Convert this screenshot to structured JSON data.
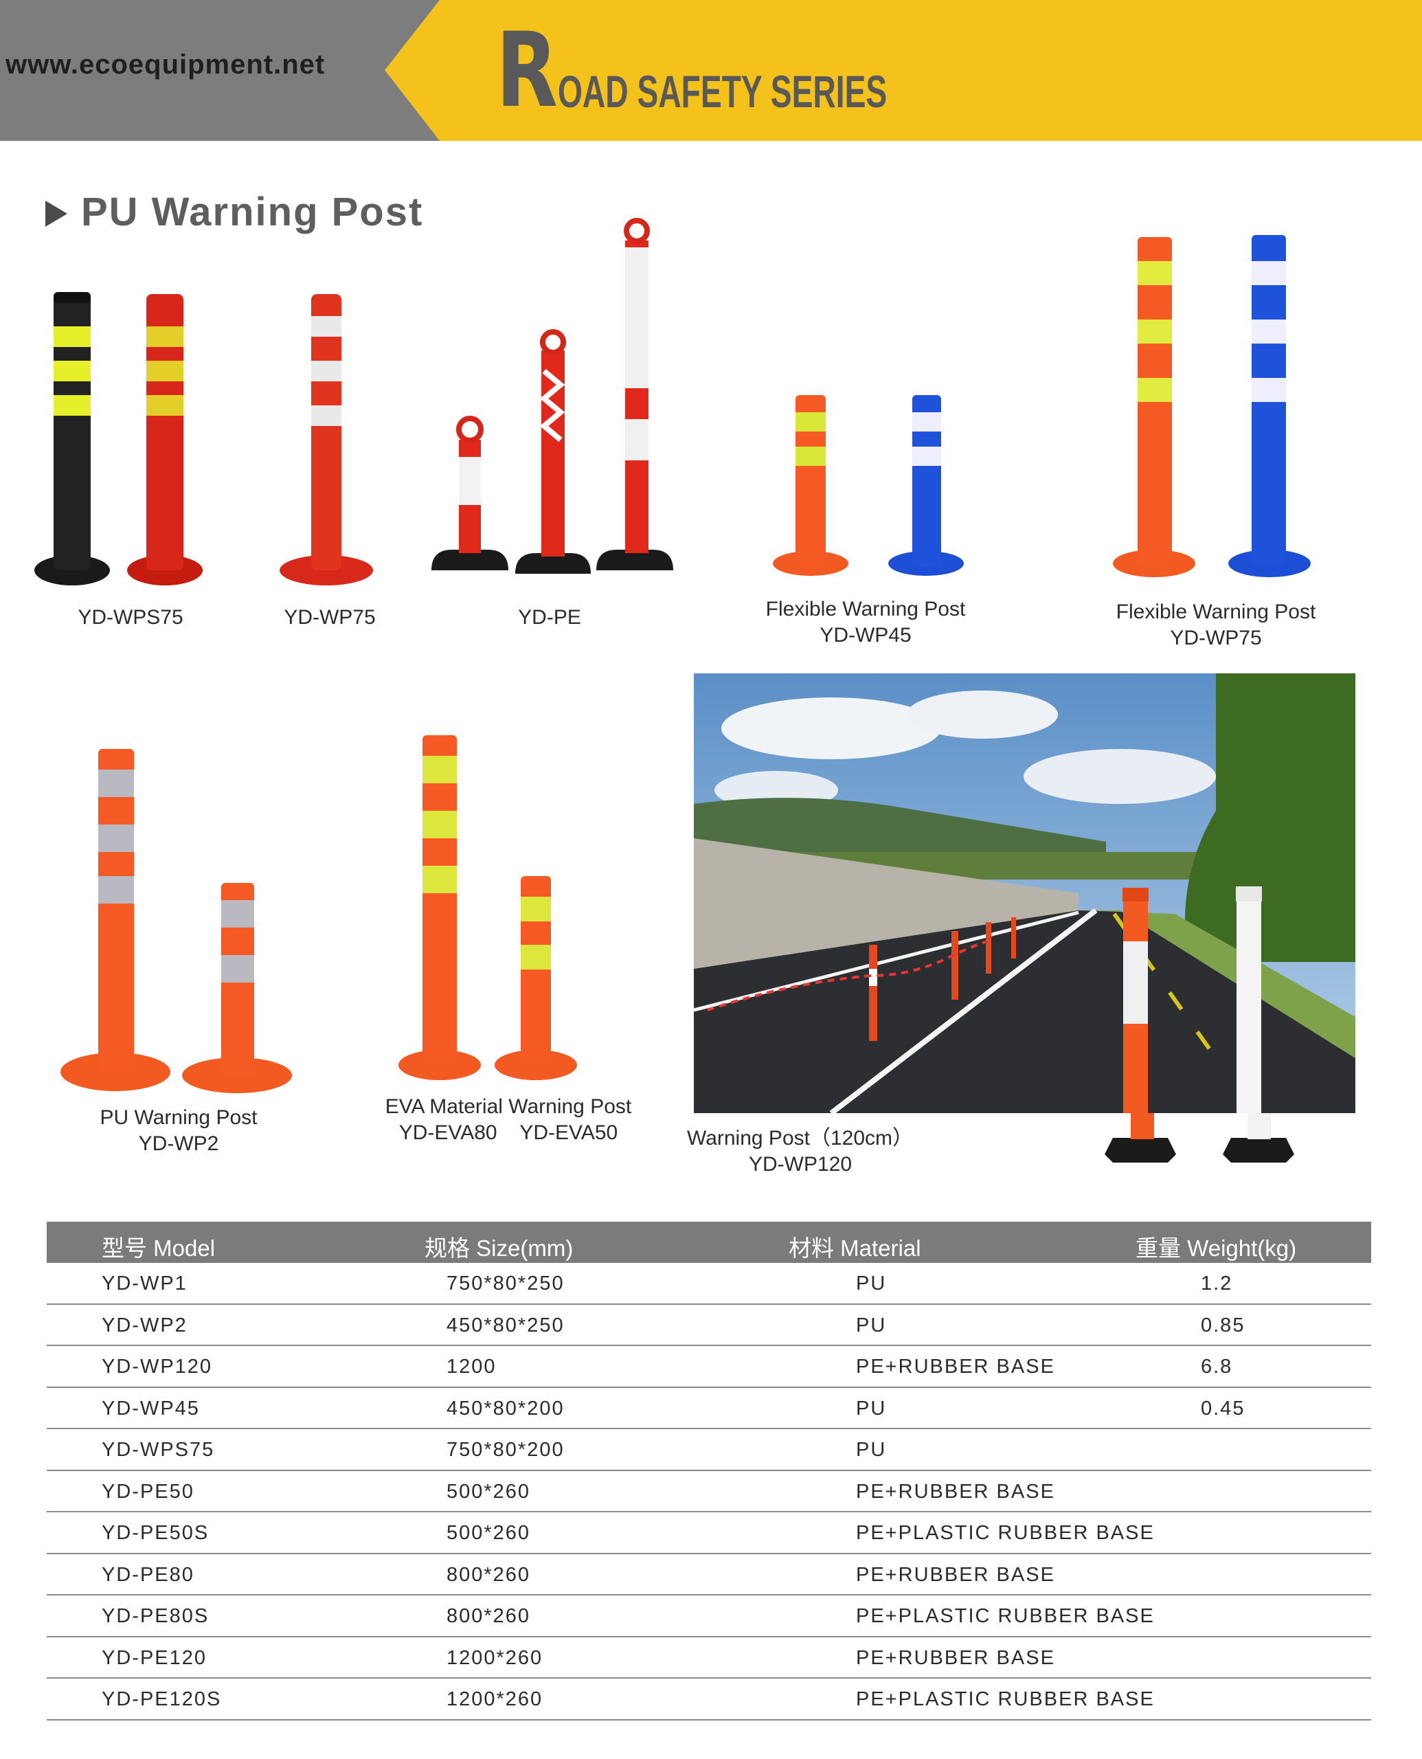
{
  "header": {
    "website": "www.ecoequipment.net",
    "brand_initial": "R",
    "brand_rest": "OAD SAFETY SERIES",
    "colors": {
      "yellow": "#f4c21a",
      "gray": "#7d7d7e",
      "text_gray": "#595959"
    }
  },
  "section": {
    "title": "PU Warning Post",
    "icon": "triangle-bullet-icon"
  },
  "products": [
    {
      "lines": [
        "YD-WPS75"
      ]
    },
    {
      "lines": [
        "YD-WP75"
      ]
    },
    {
      "lines": [
        "YD-PE"
      ]
    },
    {
      "lines": [
        "Flexible Warning Post",
        "YD-WP45"
      ]
    },
    {
      "lines": [
        "Flexible Warning Post",
        "YD-WP75"
      ]
    },
    {
      "lines": [
        "PU Warning Post",
        "YD-WP2"
      ]
    },
    {
      "lines": [
        "EVA Material Warning Post",
        "YD-EVA80    YD-EVA50"
      ]
    },
    {
      "lines": [
        "Warning Post（120cm）",
        "YD-WP120"
      ]
    }
  ],
  "table": {
    "headers": [
      "型号 Model",
      "规格 Size(mm)",
      "材料 Material",
      "重量 Weight(kg)"
    ],
    "rows": [
      [
        "YD-WP1",
        "750*80*250",
        "PU",
        "1.2"
      ],
      [
        "YD-WP2",
        "450*80*250",
        "PU",
        "0.85"
      ],
      [
        "YD-WP120",
        "1200",
        "PE+RUBBER BASE",
        "6.8"
      ],
      [
        "YD-WP45",
        "450*80*200",
        "PU",
        "0.45"
      ],
      [
        "YD-WPS75",
        "750*80*200",
        "PU",
        ""
      ],
      [
        "YD-PE50",
        "500*260",
        "PE+RUBBER BASE",
        ""
      ],
      [
        "YD-PE50S",
        "500*260",
        "PE+PLASTIC RUBBER BASE",
        ""
      ],
      [
        "YD-PE80",
        "800*260",
        "PE+RUBBER BASE",
        ""
      ],
      [
        "YD-PE80S",
        "800*260",
        "PE+PLASTIC RUBBER BASE",
        ""
      ],
      [
        "YD-PE120",
        "1200*260",
        "PE+RUBBER BASE",
        ""
      ],
      [
        "YD-PE120S",
        "1200*260",
        "PE+PLASTIC RUBBER BASE",
        ""
      ]
    ]
  }
}
